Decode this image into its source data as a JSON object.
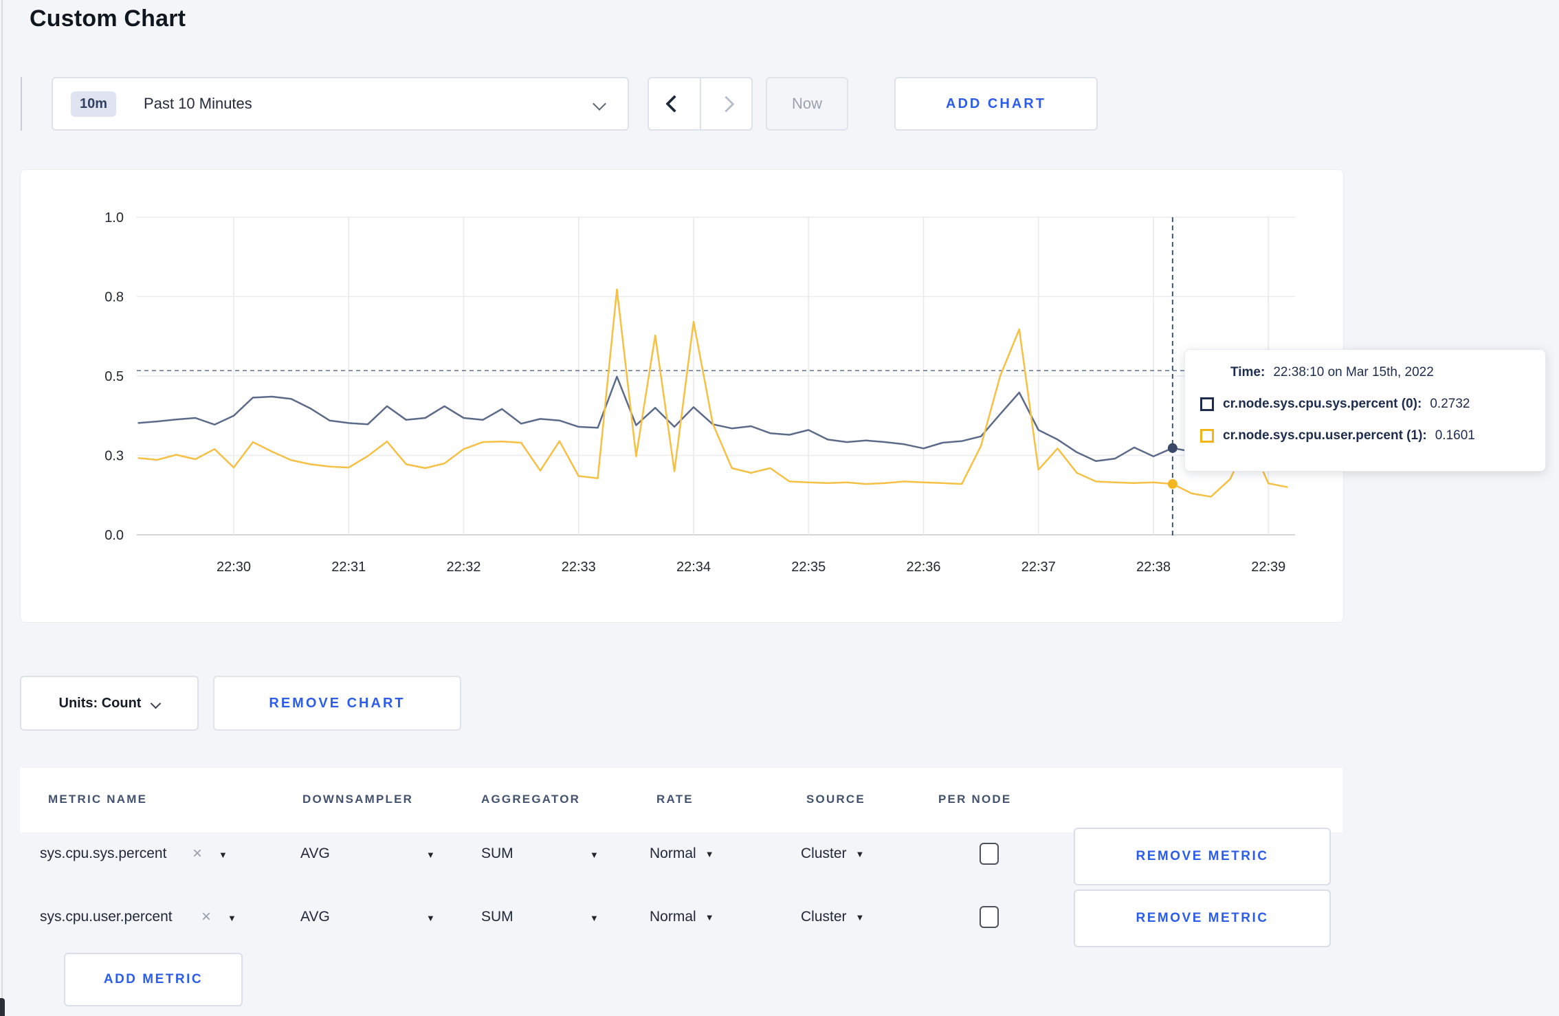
{
  "page": {
    "title": "Custom Chart"
  },
  "toolbar": {
    "time_badge": "10m",
    "time_range_label": "Past 10 Minutes",
    "now_label": "Now",
    "add_chart_label": "ADD CHART"
  },
  "chart_controls": {
    "units_label": "Units: Count",
    "remove_chart_label": "REMOVE CHART"
  },
  "tooltip": {
    "time_label": "Time:",
    "time_value": "22:38:10 on Mar 15th, 2022",
    "series": [
      {
        "name": "cr.node.sys.cpu.sys.percent (0):",
        "value": "0.2732",
        "color": "#1d2c4c"
      },
      {
        "name": "cr.node.sys.cpu.user.percent (1):",
        "value": "0.1601",
        "color": "#f2b513"
      }
    ]
  },
  "metrics_table": {
    "headers": [
      "METRIC NAME",
      "DOWNSAMPLER",
      "AGGREGATOR",
      "RATE",
      "SOURCE",
      "PER NODE"
    ],
    "rows": [
      {
        "metric": "sys.cpu.sys.percent",
        "downsampler": "AVG",
        "aggregator": "SUM",
        "rate": "Normal",
        "source": "Cluster",
        "per_node_checked": false,
        "remove_label": "REMOVE METRIC"
      },
      {
        "metric": "sys.cpu.user.percent",
        "downsampler": "AVG",
        "aggregator": "SUM",
        "rate": "Normal",
        "source": "Cluster",
        "per_node_checked": false,
        "remove_label": "REMOVE METRIC"
      }
    ],
    "add_metric_label": "ADD METRIC"
  },
  "chart_data": {
    "type": "line",
    "title": "",
    "xlabel": "",
    "ylabel": "",
    "ylim": [
      0,
      1
    ],
    "grid": true,
    "x_tick_labels": [
      "22:30",
      "22:31",
      "22:32",
      "22:33",
      "22:34",
      "22:35",
      "22:36",
      "22:37",
      "22:38",
      "22:39"
    ],
    "y_tick_labels": [
      "0.0",
      "0.3",
      "0.5",
      "0.8",
      "1.0"
    ],
    "y_tick_values": [
      0,
      0.25,
      0.5,
      0.75,
      1
    ],
    "start_time": "22:29:10",
    "interval_seconds": 10,
    "crosshair": {
      "time": "22:38:10",
      "index": 54,
      "hline_value": 0.517
    },
    "series": [
      {
        "name": "cr.node.sys.cpu.sys.percent",
        "color": "#5b6a88",
        "dot_color": "#3a4a68",
        "values": [
          0.352,
          0.357,
          0.363,
          0.368,
          0.347,
          0.375,
          0.432,
          0.435,
          0.428,
          0.398,
          0.36,
          0.352,
          0.348,
          0.405,
          0.362,
          0.368,
          0.405,
          0.368,
          0.362,
          0.396,
          0.35,
          0.365,
          0.36,
          0.34,
          0.337,
          0.498,
          0.345,
          0.4,
          0.34,
          0.402,
          0.348,
          0.335,
          0.342,
          0.32,
          0.315,
          0.33,
          0.3,
          0.292,
          0.297,
          0.292,
          0.285,
          0.272,
          0.29,
          0.295,
          0.31,
          0.38,
          0.448,
          0.33,
          0.3,
          0.26,
          0.232,
          0.24,
          0.275,
          0.247,
          0.2732,
          0.262,
          0.268,
          0.272,
          0.27,
          0.272,
          0.272
        ]
      },
      {
        "name": "cr.node.sys.cpu.user.percent",
        "color": "#f5c043",
        "dot_color": "#f2b71e",
        "values": [
          0.242,
          0.236,
          0.252,
          0.238,
          0.27,
          0.212,
          0.292,
          0.262,
          0.235,
          0.222,
          0.215,
          0.212,
          0.248,
          0.294,
          0.222,
          0.21,
          0.225,
          0.27,
          0.292,
          0.294,
          0.29,
          0.202,
          0.295,
          0.185,
          0.178,
          0.773,
          0.247,
          0.628,
          0.2,
          0.671,
          0.35,
          0.21,
          0.195,
          0.21,
          0.168,
          0.165,
          0.163,
          0.165,
          0.16,
          0.163,
          0.168,
          0.165,
          0.163,
          0.16,
          0.28,
          0.5,
          0.647,
          0.205,
          0.272,
          0.195,
          0.168,
          0.165,
          0.163,
          0.165,
          0.1601,
          0.13,
          0.12,
          0.175,
          0.3,
          0.162,
          0.15
        ]
      }
    ]
  }
}
